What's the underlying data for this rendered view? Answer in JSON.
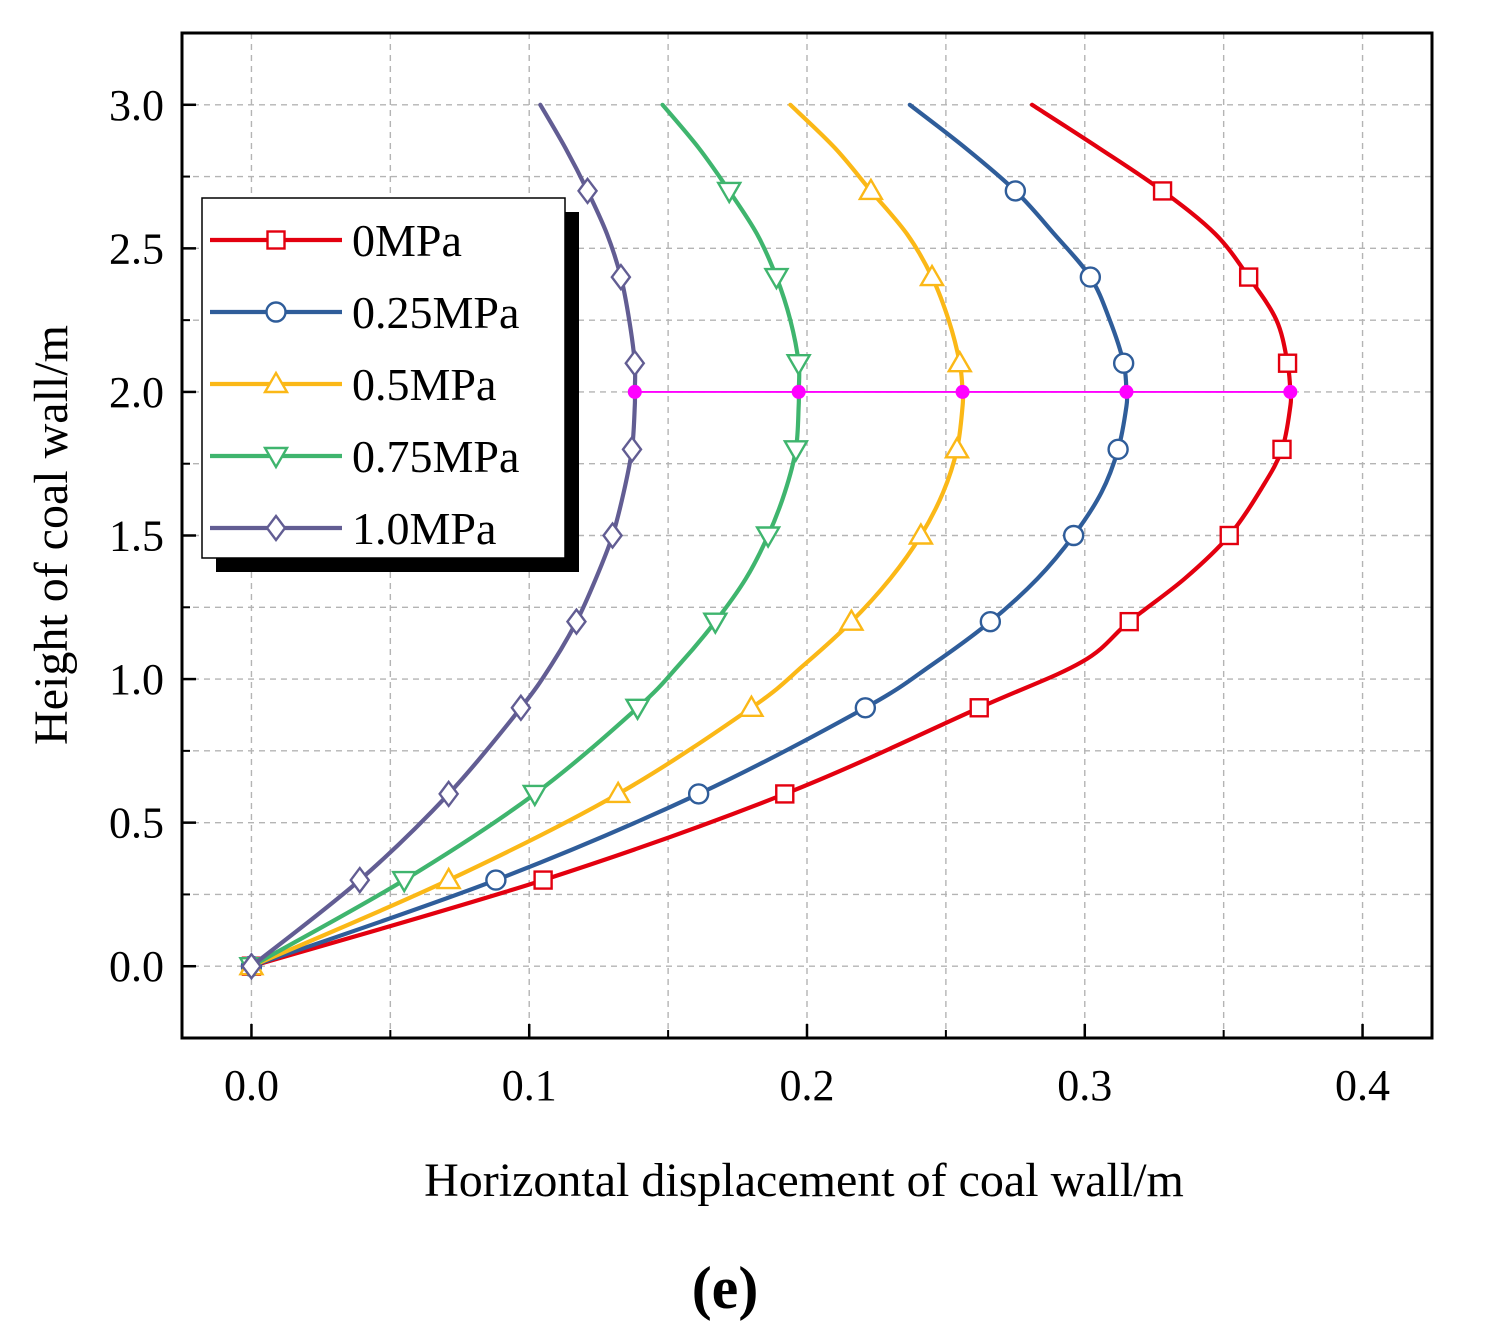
{
  "chart_data": {
    "type": "line",
    "title": "",
    "panel_label": "(e)",
    "xlabel": "Horizontal displacement of coal wall/m",
    "ylabel": "Height of coal wall/m",
    "xlim": [
      -0.025,
      0.425
    ],
    "ylim": [
      -0.25,
      3.25
    ],
    "x_ticks": [
      0.0,
      0.1,
      0.2,
      0.3,
      0.4
    ],
    "x_tick_labels": [
      "0.0",
      "0.1",
      "0.2",
      "0.3",
      "0.4"
    ],
    "y_ticks": [
      0.0,
      0.5,
      1.0,
      1.5,
      2.0,
      2.5,
      3.0
    ],
    "y_tick_labels": [
      "0.0",
      "0.5",
      "1.0",
      "1.5",
      "2.0",
      "2.5",
      "3.0"
    ],
    "grid": true,
    "legend_position": "top-left",
    "series": [
      {
        "name": "0MPa",
        "color": "#e3000f",
        "marker": "square",
        "curve": [
          [
            0.0,
            0.0
          ],
          [
            0.105,
            0.3
          ],
          [
            0.192,
            0.6
          ],
          [
            0.262,
            0.9
          ],
          [
            0.299,
            1.06
          ],
          [
            0.316,
            1.2
          ],
          [
            0.336,
            1.35
          ],
          [
            0.352,
            1.5
          ],
          [
            0.364,
            1.67
          ],
          [
            0.371,
            1.8
          ],
          [
            0.374,
            1.95
          ],
          [
            0.374,
            2.0
          ],
          [
            0.373,
            2.1
          ],
          [
            0.369,
            2.25
          ],
          [
            0.359,
            2.4
          ],
          [
            0.347,
            2.55
          ],
          [
            0.328,
            2.7
          ],
          [
            0.305,
            2.85
          ],
          [
            0.281,
            3.0
          ]
        ],
        "markers": [
          [
            0.0,
            0.0
          ],
          [
            0.105,
            0.3
          ],
          [
            0.192,
            0.6
          ],
          [
            0.262,
            0.9
          ],
          [
            0.316,
            1.2
          ],
          [
            0.352,
            1.5
          ],
          [
            0.371,
            1.8
          ],
          [
            0.373,
            2.1
          ],
          [
            0.359,
            2.4
          ],
          [
            0.328,
            2.7
          ]
        ]
      },
      {
        "name": "0.25MPa",
        "color": "#2f5d9a",
        "marker": "circle",
        "curve": [
          [
            0.0,
            0.0
          ],
          [
            0.088,
            0.3
          ],
          [
            0.161,
            0.6
          ],
          [
            0.221,
            0.9
          ],
          [
            0.245,
            1.05
          ],
          [
            0.266,
            1.2
          ],
          [
            0.283,
            1.35
          ],
          [
            0.296,
            1.5
          ],
          [
            0.306,
            1.65
          ],
          [
            0.312,
            1.8
          ],
          [
            0.315,
            1.95
          ],
          [
            0.315,
            2.0
          ],
          [
            0.314,
            2.1
          ],
          [
            0.309,
            2.25
          ],
          [
            0.302,
            2.4
          ],
          [
            0.289,
            2.55
          ],
          [
            0.275,
            2.7
          ],
          [
            0.257,
            2.85
          ],
          [
            0.237,
            3.0
          ]
        ],
        "markers": [
          [
            0.0,
            0.0
          ],
          [
            0.088,
            0.3
          ],
          [
            0.161,
            0.6
          ],
          [
            0.221,
            0.9
          ],
          [
            0.266,
            1.2
          ],
          [
            0.296,
            1.5
          ],
          [
            0.312,
            1.8
          ],
          [
            0.314,
            2.1
          ],
          [
            0.302,
            2.4
          ],
          [
            0.275,
            2.7
          ]
        ]
      },
      {
        "name": "0.5MPa",
        "color": "#fbb817",
        "marker": "triangle-up",
        "curve": [
          [
            0.0,
            0.0
          ],
          [
            0.071,
            0.3
          ],
          [
            0.132,
            0.6
          ],
          [
            0.18,
            0.9
          ],
          [
            0.199,
            1.05
          ],
          [
            0.216,
            1.2
          ],
          [
            0.23,
            1.35
          ],
          [
            0.241,
            1.5
          ],
          [
            0.249,
            1.65
          ],
          [
            0.254,
            1.8
          ],
          [
            0.256,
            1.95
          ],
          [
            0.256,
            2.0
          ],
          [
            0.255,
            2.1
          ],
          [
            0.251,
            2.25
          ],
          [
            0.245,
            2.4
          ],
          [
            0.236,
            2.55
          ],
          [
            0.223,
            2.7
          ],
          [
            0.21,
            2.85
          ],
          [
            0.194,
            3.0
          ]
        ],
        "markers": [
          [
            0.0,
            0.0
          ],
          [
            0.071,
            0.3
          ],
          [
            0.132,
            0.6
          ],
          [
            0.18,
            0.9
          ],
          [
            0.216,
            1.2
          ],
          [
            0.241,
            1.5
          ],
          [
            0.254,
            1.8
          ],
          [
            0.255,
            2.1
          ],
          [
            0.245,
            2.4
          ],
          [
            0.223,
            2.7
          ]
        ]
      },
      {
        "name": "0.75MPa",
        "color": "#3fb56e",
        "marker": "triangle-down",
        "curve": [
          [
            0.0,
            0.0
          ],
          [
            0.055,
            0.3
          ],
          [
            0.102,
            0.6
          ],
          [
            0.139,
            0.9
          ],
          [
            0.154,
            1.05
          ],
          [
            0.167,
            1.2
          ],
          [
            0.178,
            1.35
          ],
          [
            0.186,
            1.5
          ],
          [
            0.192,
            1.65
          ],
          [
            0.196,
            1.8
          ],
          [
            0.197,
            1.95
          ],
          [
            0.197,
            2.0
          ],
          [
            0.197,
            2.1
          ],
          [
            0.194,
            2.25
          ],
          [
            0.189,
            2.4
          ],
          [
            0.182,
            2.55
          ],
          [
            0.172,
            2.7
          ],
          [
            0.161,
            2.85
          ],
          [
            0.148,
            3.0
          ]
        ],
        "markers": [
          [
            0.0,
            0.0
          ],
          [
            0.055,
            0.3
          ],
          [
            0.102,
            0.6
          ],
          [
            0.139,
            0.9
          ],
          [
            0.167,
            1.2
          ],
          [
            0.186,
            1.5
          ],
          [
            0.196,
            1.8
          ],
          [
            0.197,
            2.1
          ],
          [
            0.189,
            2.4
          ],
          [
            0.172,
            2.7
          ]
        ]
      },
      {
        "name": "1.0MPa",
        "color": "#625d93",
        "marker": "diamond",
        "curve": [
          [
            0.0,
            0.0
          ],
          [
            0.039,
            0.3
          ],
          [
            0.071,
            0.6
          ],
          [
            0.097,
            0.9
          ],
          [
            0.108,
            1.05
          ],
          [
            0.117,
            1.2
          ],
          [
            0.124,
            1.35
          ],
          [
            0.13,
            1.5
          ],
          [
            0.134,
            1.65
          ],
          [
            0.137,
            1.8
          ],
          [
            0.138,
            1.95
          ],
          [
            0.138,
            2.0
          ],
          [
            0.138,
            2.1
          ],
          [
            0.136,
            2.25
          ],
          [
            0.133,
            2.4
          ],
          [
            0.128,
            2.55
          ],
          [
            0.121,
            2.7
          ],
          [
            0.113,
            2.85
          ],
          [
            0.104,
            3.0
          ]
        ],
        "markers": [
          [
            0.0,
            0.0
          ],
          [
            0.039,
            0.3
          ],
          [
            0.071,
            0.6
          ],
          [
            0.097,
            0.9
          ],
          [
            0.117,
            1.2
          ],
          [
            0.13,
            1.5
          ],
          [
            0.137,
            1.8
          ],
          [
            0.138,
            2.1
          ],
          [
            0.133,
            2.4
          ],
          [
            0.121,
            2.7
          ]
        ]
      }
    ],
    "reference_line": {
      "color": "#ff00ff",
      "y": 2.0,
      "points": [
        [
          0.138,
          2.0
        ],
        [
          0.197,
          2.0
        ],
        [
          0.256,
          2.0
        ],
        [
          0.315,
          2.0
        ],
        [
          0.374,
          2.0
        ]
      ]
    }
  }
}
